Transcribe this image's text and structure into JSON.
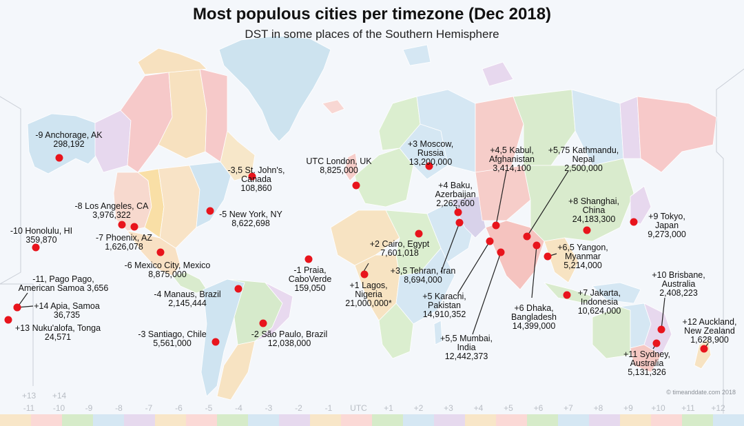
{
  "title": "Most populous cities per timezone (Dec 2018)",
  "subtitle": "DST in some places of the Southern Hemisphere",
  "credit": "© timeanddate.com 2018",
  "marker_color": "#e8141c",
  "timezone_axis": {
    "labels": [
      "-11",
      "-10",
      "-9",
      "-8",
      "-7",
      "-6",
      "-5",
      "-4",
      "-3",
      "-2",
      "-1",
      "UTC",
      "+1",
      "+2",
      "+3",
      "+4",
      "+5",
      "+6",
      "+7",
      "+8",
      "+9",
      "+10",
      "+11",
      "+12"
    ],
    "extra": [
      "+13",
      "+14"
    ],
    "stripe_colors": [
      "#f8e6c8",
      "#fbd9d6",
      "#d6ebc9",
      "#d5e7f3",
      "#e6d9ee",
      "#f8e6c8",
      "#fbd9d6",
      "#d6ebc9",
      "#d5e7f3",
      "#e6d9ee",
      "#f8e6c8",
      "#fbd9d6",
      "#d6ebc9",
      "#d5e7f3",
      "#e6d9ee",
      "#f8e6c8",
      "#fbd9d6",
      "#d6ebc9",
      "#d5e7f3",
      "#e6d9ee",
      "#f8e6c8",
      "#fbd9d6",
      "#d6ebc9",
      "#d5e7f3"
    ]
  },
  "cities": [
    {
      "id": "anchorage",
      "lines": [
        "-9 Anchorage, AK",
        "298,192"
      ]
    },
    {
      "id": "honolulu",
      "lines": [
        "-10 Honolulu, HI",
        "359,870"
      ]
    },
    {
      "id": "los-angeles",
      "lines": [
        "-8 Los Angeles, CA",
        "3,976,322"
      ]
    },
    {
      "id": "phoenix",
      "lines": [
        "-7 Phoenix, AZ",
        "1,626,078"
      ]
    },
    {
      "id": "mexico-city",
      "lines": [
        "-6 Mexico City, Mexico",
        "8,875,000"
      ]
    },
    {
      "id": "new-york",
      "lines": [
        "-5 New York, NY",
        "8,622,698"
      ]
    },
    {
      "id": "st-johns",
      "lines": [
        "-3,5 St. John's,",
        "Canada",
        "108,860"
      ]
    },
    {
      "id": "pago-pago",
      "lines": [
        "-11, Pago Pago,",
        "American Samoa 3,656"
      ]
    },
    {
      "id": "apia",
      "lines": [
        "+14 Apia, Samoa",
        "36,735"
      ]
    },
    {
      "id": "nukualofa",
      "lines": [
        "+13 Nuku'alofa, Tonga",
        "24,571"
      ]
    },
    {
      "id": "manaus",
      "lines": [
        "-4 Manaus, Brazil",
        "2,145,444"
      ]
    },
    {
      "id": "santiago",
      "lines": [
        "-3 Santiago, Chile",
        "5,561,000"
      ]
    },
    {
      "id": "sao-paulo",
      "lines": [
        "-2 São Paulo, Brazil",
        "12,038,000"
      ]
    },
    {
      "id": "praia",
      "lines": [
        "-1 Praia,",
        "CaboVerde",
        "159,050"
      ]
    },
    {
      "id": "london",
      "lines": [
        "UTC London, UK",
        "8,825,000"
      ]
    },
    {
      "id": "lagos",
      "lines": [
        "+1 Lagos,",
        "Nigeria",
        "21,000,000*"
      ]
    },
    {
      "id": "cairo",
      "lines": [
        "+2 Cairo, Egypt",
        "7,601,018"
      ]
    },
    {
      "id": "moscow",
      "lines": [
        "+3 Moscow,",
        "Russia",
        "13,200,000"
      ]
    },
    {
      "id": "tehran",
      "lines": [
        "+3,5 Tehran, Iran",
        "8,694,000"
      ]
    },
    {
      "id": "baku",
      "lines": [
        "+4 Baku,",
        "Azerbaijan",
        "2,262,600"
      ]
    },
    {
      "id": "kabul",
      "lines": [
        "+4,5 Kabul,",
        "Afghanistan",
        "3,414,100"
      ]
    },
    {
      "id": "karachi",
      "lines": [
        "+5 Karachi,",
        "Pakistan",
        "14,910,352"
      ]
    },
    {
      "id": "mumbai",
      "lines": [
        "+5,5 Mumbai,",
        "India",
        "12,442,373"
      ]
    },
    {
      "id": "kathmandu",
      "lines": [
        "+5,75 Kathmandu,",
        "Nepal",
        "2,500,000"
      ]
    },
    {
      "id": "dhaka",
      "lines": [
        "+6 Dhaka,",
        "Bangladesh",
        "14,399,000"
      ]
    },
    {
      "id": "yangon",
      "lines": [
        "+6,5 Yangon,",
        "Myanmar",
        "5,214,000"
      ]
    },
    {
      "id": "jakarta",
      "lines": [
        "+7 Jakarta,",
        "Indonesia",
        "10,624,000"
      ]
    },
    {
      "id": "shanghai",
      "lines": [
        "+8 Shanghai,",
        "China",
        "24,183,300"
      ]
    },
    {
      "id": "tokyo",
      "lines": [
        "+9 Tokyo,",
        "Japan",
        "9,273,000"
      ]
    },
    {
      "id": "brisbane",
      "lines": [
        "+10 Brisbane,",
        "Australia",
        "2,408,223"
      ]
    },
    {
      "id": "sydney",
      "lines": [
        "+11 Sydney,",
        "Australia",
        "5,131,326"
      ]
    },
    {
      "id": "auckland",
      "lines": [
        "+12 Auckland,",
        "New Zealand",
        "1,628,900"
      ]
    }
  ]
}
